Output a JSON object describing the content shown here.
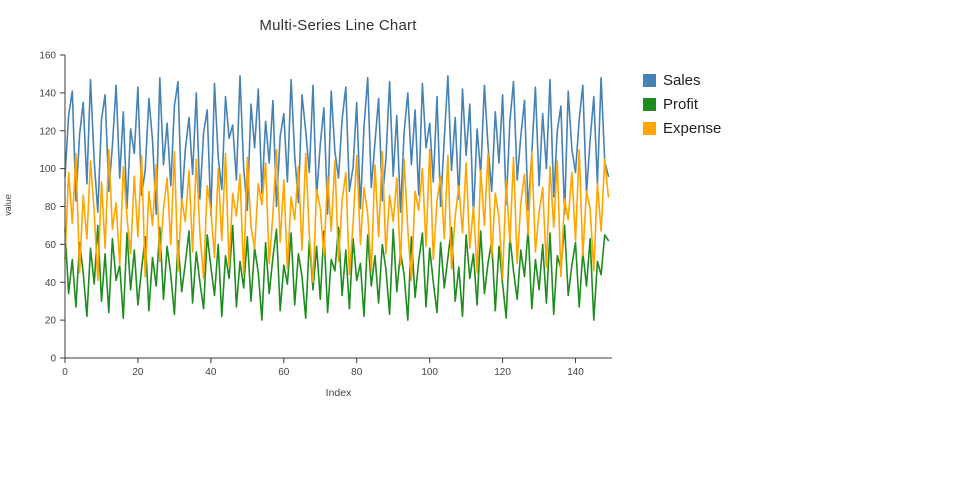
{
  "page": {
    "background": "#ffffff"
  },
  "chart_data": {
    "type": "line",
    "title": "Multi-Series Line Chart",
    "xlabel": "Index",
    "ylabel": "value",
    "xlim": [
      0,
      150
    ],
    "ylim": [
      0,
      160
    ],
    "xticks": [
      0,
      20,
      40,
      60,
      80,
      100,
      120,
      140
    ],
    "yticks": [
      0,
      20,
      40,
      60,
      80,
      100,
      120,
      140,
      160
    ],
    "grid": false,
    "legend_position": "right",
    "series": [
      {
        "name": "Sales",
        "color": "#4682B4",
        "values": [
          96,
          128,
          141,
          83,
          118,
          135,
          92,
          147,
          104,
          77,
          126,
          139,
          88,
          112,
          144,
          95,
          130,
          79,
          121,
          108,
          143,
          86,
          99,
          137,
          115,
          76,
          148,
          102,
          124,
          91,
          133,
          146,
          81,
          110,
          127,
          97,
          140,
          84,
          119,
          131,
          75,
          145,
          106,
          89,
          138,
          116,
          123,
          94,
          149,
          100,
          78,
          134,
          111,
          142,
          87,
          125,
          103,
          136,
          80,
          117,
          129,
          93,
          147,
          107,
          82,
          139,
          120,
          98,
          144,
          85,
          113,
          132,
          76,
          141,
          109,
          95,
          126,
          143,
          88,
          101,
          135,
          79,
          122,
          148,
          90,
          114,
          137,
          83,
          105,
          146,
          96,
          128,
          77,
          119,
          140,
          102,
          131,
          86,
          145,
          111,
          124,
          93,
          138,
          80,
          116,
          149,
          99,
          127,
          84,
          142,
          107,
          134,
          75,
          121,
          97,
          144,
          112,
          88,
          130,
          103,
          139,
          81,
          125,
          146,
          94,
          117,
          136,
          78,
          108,
          143,
          91,
          129,
          100,
          147,
          85,
          120,
          133,
          76,
          141,
          110,
          98,
          126,
          144,
          87,
          115,
          138,
          92,
          148,
          104,
          96
        ]
      },
      {
        "name": "Profit",
        "color": "#1e8c1e",
        "values": [
          68,
          34,
          52,
          27,
          61,
          45,
          22,
          58,
          39,
          70,
          30,
          55,
          24,
          63,
          41,
          49,
          21,
          66,
          36,
          57,
          28,
          47,
          64,
          25,
          53,
          38,
          69,
          31,
          59,
          44,
          23,
          62,
          35,
          50,
          67,
          29,
          56,
          40,
          26,
          65,
          48,
          33,
          60,
          22,
          54,
          42,
          70,
          27,
          51,
          37,
          64,
          30,
          58,
          45,
          20,
          61,
          34,
          53,
          68,
          25,
          49,
          39,
          66,
          28,
          55,
          43,
          21,
          62,
          36,
          59,
          31,
          67,
          24,
          52,
          46,
          69,
          33,
          57,
          26,
          63,
          41,
          50,
          22,
          65,
          38,
          54,
          29,
          60,
          47,
          23,
          68,
          35,
          56,
          44,
          20,
          64,
          32,
          51,
          66,
          27,
          58,
          40,
          24,
          61,
          37,
          53,
          69,
          30,
          48,
          22,
          65,
          42,
          55,
          28,
          67,
          34,
          50,
          62,
          25,
          59,
          39,
          21,
          64,
          46,
          31,
          57,
          43,
          68,
          26,
          52,
          36,
          60,
          29,
          66,
          23,
          54,
          47,
          70,
          33,
          49,
          61,
          27,
          56,
          38,
          63,
          20,
          51,
          44,
          65,
          62
        ]
      },
      {
        "name": "Expense",
        "color": "#FFA500",
        "values": [
          52,
          98,
          71,
          108,
          45,
          86,
          63,
          104,
          77,
          41,
          93,
          58,
          110,
          68,
          82,
          49,
          101,
          74,
          55,
          96,
          64,
          107,
          43,
          88,
          70,
          102,
          51,
          79,
          95,
          60,
          109,
          46,
          84,
          72,
          99,
          56,
          105,
          66,
          42,
          91,
          78,
          53,
          100,
          62,
          108,
          48,
          87,
          75,
          97,
          44,
          106,
          69,
          58,
          92,
          81,
          103,
          50,
          76,
          110,
          61,
          94,
          47,
          85,
          73,
          101,
          57,
          108,
          65,
          40,
          89,
          79,
          54,
          96,
          67,
          104,
          51,
          83,
          98,
          44,
          71,
          107,
          60,
          90,
          76,
          46,
          102,
          64,
          109,
          55,
          86,
          72,
          95,
          49,
          105,
          68,
          41,
          88,
          78,
          100,
          59,
          110,
          52,
          83,
          96,
          63,
          107,
          47,
          75,
          91,
          66,
          103,
          58,
          80,
          45,
          99,
          70,
          108,
          53,
          87,
          74,
          42,
          94,
          61,
          106,
          50,
          82,
          97,
          65,
          109,
          56,
          77,
          90,
          48,
          101,
          69,
          104,
          43,
          84,
          73,
          98,
          62,
          110,
          54,
          88,
          79,
          46,
          92,
          67,
          105,
          85
        ]
      }
    ]
  }
}
